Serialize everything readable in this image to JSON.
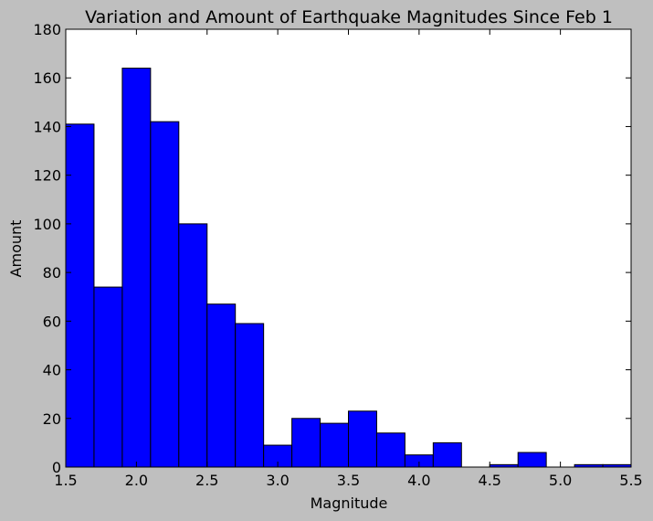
{
  "chart_data": {
    "type": "bar",
    "title": "Variation and Amount of Earthquake Magnitudes Since Feb 1",
    "xlabel": "Magnitude",
    "ylabel": "Amount",
    "xlim": [
      1.5,
      5.5
    ],
    "ylim": [
      0,
      180
    ],
    "x_ticks": [
      "1.5",
      "2.0",
      "2.5",
      "3.0",
      "3.5",
      "4.0",
      "4.5",
      "5.0",
      "5.5"
    ],
    "y_ticks": [
      "0",
      "20",
      "40",
      "60",
      "80",
      "100",
      "120",
      "140",
      "160",
      "180"
    ],
    "bins": [
      {
        "x0": 1.5,
        "x1": 1.7,
        "value": 141
      },
      {
        "x0": 1.7,
        "x1": 1.9,
        "value": 74
      },
      {
        "x0": 1.9,
        "x1": 2.1,
        "value": 164
      },
      {
        "x0": 2.1,
        "x1": 2.3,
        "value": 142
      },
      {
        "x0": 2.3,
        "x1": 2.5,
        "value": 100
      },
      {
        "x0": 2.5,
        "x1": 2.7,
        "value": 67
      },
      {
        "x0": 2.7,
        "x1": 2.9,
        "value": 59
      },
      {
        "x0": 2.9,
        "x1": 3.1,
        "value": 9
      },
      {
        "x0": 3.1,
        "x1": 3.3,
        "value": 20
      },
      {
        "x0": 3.3,
        "x1": 3.5,
        "value": 18
      },
      {
        "x0": 3.5,
        "x1": 3.7,
        "value": 23
      },
      {
        "x0": 3.7,
        "x1": 3.9,
        "value": 14
      },
      {
        "x0": 3.9,
        "x1": 4.1,
        "value": 5
      },
      {
        "x0": 4.1,
        "x1": 4.3,
        "value": 10
      },
      {
        "x0": 4.3,
        "x1": 4.5,
        "value": 0
      },
      {
        "x0": 4.5,
        "x1": 4.7,
        "value": 1
      },
      {
        "x0": 4.7,
        "x1": 4.9,
        "value": 6
      },
      {
        "x0": 4.9,
        "x1": 5.1,
        "value": 0
      },
      {
        "x0": 5.1,
        "x1": 5.3,
        "value": 1
      },
      {
        "x0": 5.3,
        "x1": 5.5,
        "value": 1
      }
    ],
    "bar_color": "#0000ff",
    "edge_color": "#000000",
    "grid": false,
    "legend": "none"
  },
  "style": {
    "figure_background": "#bfbfbf",
    "plot_background": "#ffffff"
  }
}
